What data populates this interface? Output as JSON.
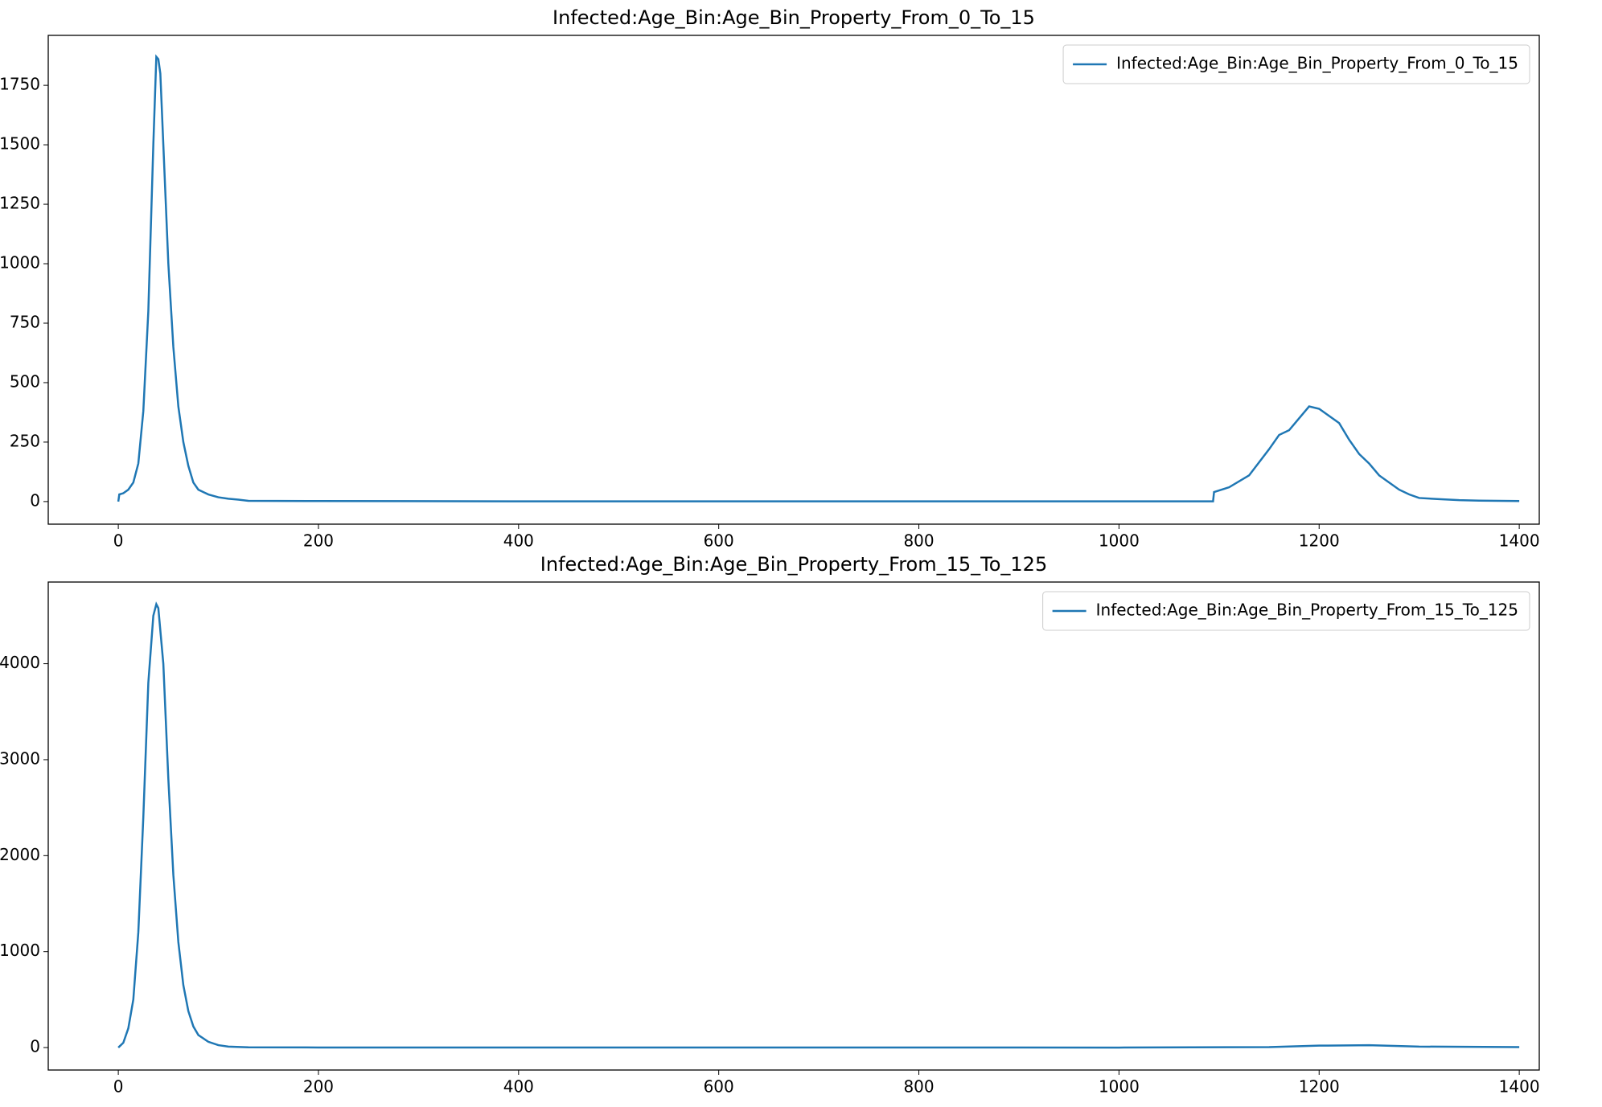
{
  "chart_data": [
    {
      "type": "line",
      "title": "Infected:Age_Bin:Age_Bin_Property_From_0_To_15",
      "x": [
        0,
        1,
        5,
        10,
        15,
        20,
        25,
        30,
        35,
        38,
        40,
        42,
        45,
        50,
        55,
        60,
        65,
        70,
        75,
        80,
        90,
        100,
        110,
        120,
        130,
        200,
        400,
        600,
        800,
        1000,
        1094,
        1095,
        1110,
        1130,
        1150,
        1160,
        1170,
        1180,
        1190,
        1200,
        1210,
        1220,
        1230,
        1240,
        1250,
        1260,
        1270,
        1280,
        1290,
        1300,
        1320,
        1340,
        1360,
        1380,
        1400
      ],
      "series": [
        {
          "name": "Infected:Age_Bin:Age_Bin_Property_From_0_To_15",
          "color": "#1f77b4",
          "values": [
            0,
            30,
            35,
            50,
            80,
            160,
            380,
            800,
            1500,
            1870,
            1860,
            1800,
            1500,
            1000,
            650,
            400,
            250,
            150,
            80,
            50,
            30,
            18,
            12,
            8,
            3,
            2,
            1,
            1,
            1,
            1,
            1,
            40,
            60,
            110,
            220,
            280,
            300,
            350,
            400,
            390,
            360,
            330,
            260,
            200,
            160,
            110,
            80,
            50,
            30,
            15,
            10,
            6,
            4,
            3,
            2
          ]
        }
      ],
      "xlim": [
        -70,
        1420
      ],
      "ylim": [
        -95,
        1960
      ],
      "xticks": [
        0,
        200,
        400,
        600,
        800,
        1000,
        1200,
        1400
      ],
      "yticks": [
        0,
        250,
        500,
        750,
        1000,
        1250,
        1500,
        1750
      ],
      "legend": "upper right"
    },
    {
      "type": "line",
      "title": "Infected:Age_Bin:Age_Bin_Property_From_15_To_125",
      "x": [
        0,
        5,
        10,
        15,
        20,
        25,
        30,
        35,
        38,
        40,
        45,
        50,
        55,
        60,
        65,
        70,
        75,
        80,
        90,
        100,
        110,
        130,
        200,
        400,
        600,
        800,
        1000,
        1150,
        1200,
        1250,
        1300,
        1400
      ],
      "series": [
        {
          "name": "Infected:Age_Bin:Age_Bin_Property_From_15_To_125",
          "color": "#1f77b4",
          "values": [
            0,
            50,
            200,
            500,
            1200,
            2400,
            3800,
            4500,
            4620,
            4580,
            4000,
            2800,
            1800,
            1100,
            650,
            380,
            220,
            130,
            60,
            25,
            10,
            3,
            1,
            1,
            1,
            1,
            0,
            5,
            20,
            25,
            10,
            5
          ]
        }
      ],
      "xlim": [
        -70,
        1420
      ],
      "ylim": [
        -234,
        4851
      ],
      "xticks": [
        0,
        200,
        400,
        600,
        800,
        1000,
        1200,
        1400
      ],
      "yticks": [
        0,
        1000,
        2000,
        3000,
        4000
      ],
      "legend": "upper right"
    }
  ]
}
